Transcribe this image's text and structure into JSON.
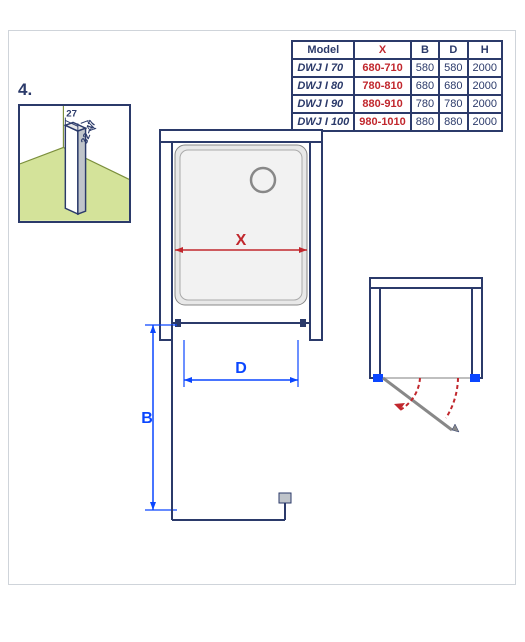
{
  "step": {
    "label": "4.",
    "dim_top": "27",
    "dim_side": "32-47"
  },
  "colors": {
    "navy": "#2b3a6a",
    "red": "#c1272d",
    "green_wall": "#d4e39a",
    "green_edge": "#7b8f3c",
    "grey_light": "#e8e8e8",
    "grey_mid": "#bfc4ca",
    "blue_bright": "#0a46ff"
  },
  "table": {
    "headers": [
      "Model",
      "X",
      "B",
      "D",
      "H"
    ],
    "x_col_index": 1,
    "rows": [
      [
        "DWJ I 70",
        "680-710",
        "580",
        "580",
        "2000"
      ],
      [
        "DWJ I 80",
        "780-810",
        "680",
        "680",
        "2000"
      ],
      [
        "DWJ I 90",
        "880-910",
        "780",
        "780",
        "2000"
      ],
      [
        "DWJ I 100",
        "980-1010",
        "880",
        "880",
        "2000"
      ]
    ]
  },
  "labels": {
    "X": "X",
    "B": "B",
    "D": "D"
  }
}
